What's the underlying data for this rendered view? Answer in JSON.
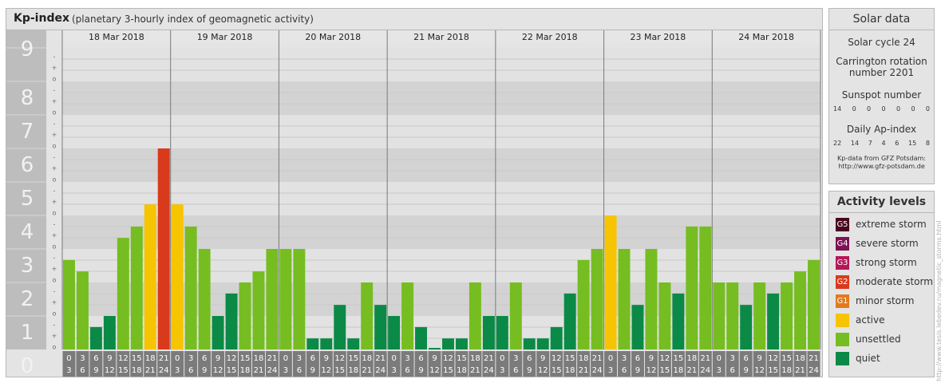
{
  "chart_data": {
    "type": "bar",
    "title": "Kp-index",
    "subtitle": "(planetary 3-hourly index of geomagnetic activity)",
    "ylim": [
      0,
      9
    ],
    "y_ticks": [
      "0",
      "1",
      "2",
      "3",
      "4",
      "5",
      "6",
      "7",
      "8",
      "9"
    ],
    "minor_ticks": [
      "o",
      "+",
      "-"
    ],
    "dates": [
      "18 Mar 2018",
      "19 Mar 2018",
      "20 Mar 2018",
      "21 Mar 2018",
      "22 Mar 2018",
      "23 Mar 2018",
      "24 Mar 2018"
    ],
    "hour_starts": [
      "0",
      "3",
      "6",
      "9",
      "12",
      "15",
      "18",
      "21"
    ],
    "hour_ends": [
      "3",
      "6",
      "9",
      "12",
      "15",
      "18",
      "21",
      "24"
    ],
    "values": [
      [
        2.67,
        2.33,
        0.67,
        1,
        3.33,
        3.67,
        4.33,
        6
      ],
      [
        4.33,
        3.67,
        3,
        1,
        1.67,
        2,
        2.33,
        3
      ],
      [
        3,
        3,
        0.33,
        0.33,
        1.33,
        0.33,
        2,
        1.33
      ],
      [
        1,
        2,
        0.67,
        0,
        0.33,
        0.33,
        2,
        1
      ],
      [
        1,
        2,
        0.33,
        0.33,
        0.67,
        1.67,
        2.67,
        3
      ],
      [
        4,
        3,
        1.33,
        3,
        2,
        1.67,
        3.67,
        3.67
      ],
      [
        2,
        2,
        1.33,
        2,
        1.67,
        2,
        2.33,
        2.67
      ]
    ],
    "colors": {
      "quiet": "#0a8a46",
      "unsettled": "#76bd21",
      "active": "#f6c400",
      "g1": "#e27a1c",
      "g2": "#d93a1c",
      "g3": "#b6175a",
      "g4": "#7d1254",
      "g5": "#48061e"
    }
  },
  "solar": {
    "title": "Solar data",
    "cycle": "Solar cycle 24",
    "carrington_line1": "Carrington rotation",
    "carrington_line2": "number 2201",
    "sunspot_title": "Sunspot number",
    "sunspot_values": [
      "14",
      "0",
      "0",
      "0",
      "0",
      "0",
      "0"
    ],
    "ap_title": "Daily Ap-index",
    "ap_values": [
      "22",
      "14",
      "7",
      "4",
      "6",
      "15",
      "8"
    ],
    "source_line1": "Kp-data from GFZ Potsdam:",
    "source_line2": "http://www.gfz-potsdam.de"
  },
  "activity": {
    "title": "Activity levels",
    "items": [
      {
        "badge": "G5",
        "label": "extreme storm",
        "color": "#48061e"
      },
      {
        "badge": "G4",
        "label": "severe storm",
        "color": "#7d1254"
      },
      {
        "badge": "G3",
        "label": "strong storm",
        "color": "#b6175a"
      },
      {
        "badge": "G2",
        "label": "moderate storm",
        "color": "#d93a1c"
      },
      {
        "badge": "G1",
        "label": "minor storm",
        "color": "#e27a1c"
      },
      {
        "badge": "",
        "label": "active",
        "color": "#f6c400"
      },
      {
        "badge": "",
        "label": "unsettled",
        "color": "#76bd21"
      },
      {
        "badge": "",
        "label": "quiet",
        "color": "#0a8a46"
      }
    ]
  },
  "credit": "http://www.tesis.lebedev.ru/magnetic_storms.html"
}
